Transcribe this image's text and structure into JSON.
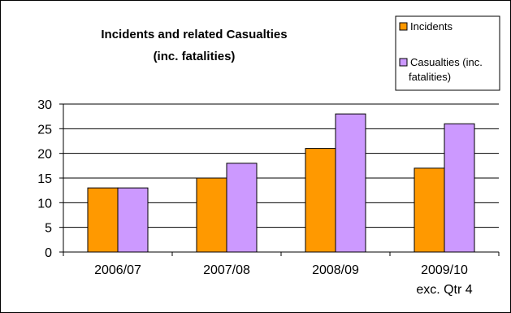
{
  "chart_data": {
    "type": "bar",
    "title": "Incidents and related Casualties",
    "subtitle": "(inc. fatalities)",
    "categories": [
      {
        "label": "2006/07",
        "label_line2": ""
      },
      {
        "label": "2007/08",
        "label_line2": ""
      },
      {
        "label": "2008/09",
        "label_line2": ""
      },
      {
        "label": "2009/10",
        "label_line2": "exc. Qtr 4"
      }
    ],
    "series": [
      {
        "name": "Incidents",
        "legend_lines": [
          "Incidents"
        ],
        "color": "#FF9900",
        "values": [
          13,
          15,
          21,
          17
        ]
      },
      {
        "name": "Casualties (inc. fatalities)",
        "legend_lines": [
          "Casualties (inc.",
          "fatalities)"
        ],
        "color": "#CC99FF",
        "values": [
          13,
          18,
          28,
          26
        ]
      }
    ],
    "yticks": [
      "0",
      "5",
      "10",
      "15",
      "20",
      "25",
      "30"
    ],
    "ylim": [
      0,
      30
    ],
    "grid": true,
    "legend_position": "top-right",
    "xlabel": "",
    "ylabel": ""
  }
}
